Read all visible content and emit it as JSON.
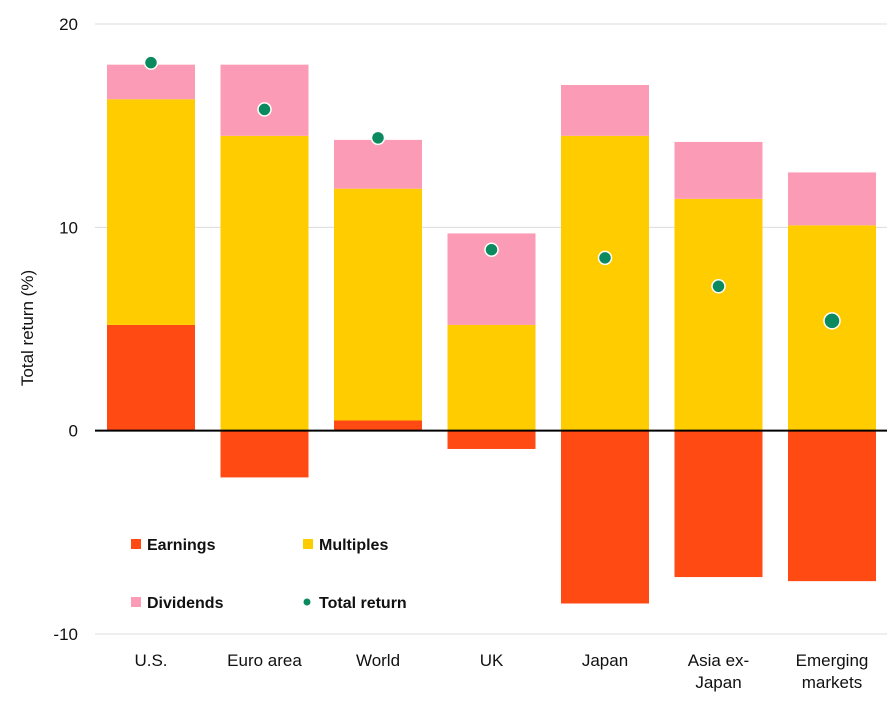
{
  "chart_data": {
    "type": "bar",
    "stacked": true,
    "categories": [
      "U.S.",
      "Euro area",
      "World",
      "UK",
      "Japan",
      "Asia ex-Japan",
      "Emerging markets"
    ],
    "category_lines": [
      [
        "U.S."
      ],
      [
        "Euro area"
      ],
      [
        "World"
      ],
      [
        "UK"
      ],
      [
        "Japan"
      ],
      [
        "Asia ex-",
        "Japan"
      ],
      [
        "Emerging",
        "markets"
      ]
    ],
    "series": [
      {
        "name": "Earnings",
        "color": "#ff4a14",
        "values": [
          5.2,
          -2.3,
          0.5,
          -0.9,
          -8.5,
          -7.2,
          -7.4
        ]
      },
      {
        "name": "Multiples",
        "color": "#ffcc00",
        "values": [
          11.1,
          14.5,
          11.4,
          5.2,
          14.5,
          11.4,
          10.1
        ]
      },
      {
        "name": "Dividends",
        "color": "#fc9bb5",
        "values": [
          1.7,
          3.5,
          2.4,
          4.5,
          2.5,
          2.8,
          2.6
        ]
      }
    ],
    "total_return": {
      "name": "Total return",
      "color": "#0b8a60",
      "values": [
        18.1,
        15.8,
        14.4,
        8.9,
        8.5,
        7.1,
        5.4
      ]
    },
    "ylabel": "Total return (%)",
    "ylim": [
      -10,
      20
    ],
    "yticks": [
      -10,
      0,
      10,
      20
    ],
    "grid": true,
    "legend_position": "bottom-left",
    "legend_rows": [
      [
        "Earnings",
        "Multiples"
      ],
      [
        "Dividends",
        "Total return"
      ]
    ]
  }
}
